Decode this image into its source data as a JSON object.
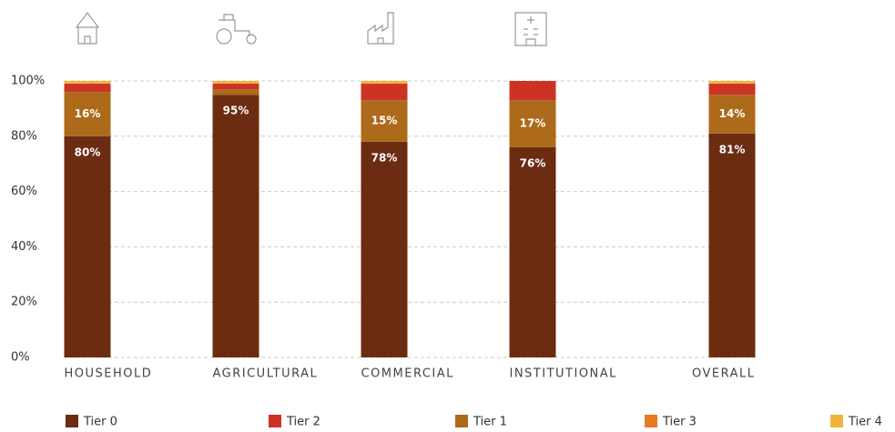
{
  "chart_data": {
    "type": "stacked_bar",
    "categories": [
      "HOUSEHOLD",
      "AGRICULTURAL",
      "COMMERCIAL",
      "INSTITUTIONAL",
      "OVERALL"
    ],
    "series": [
      {
        "name": "Tier 0",
        "color": "#6b2c12",
        "values": [
          80,
          95,
          78,
          76,
          81
        ],
        "value_labels": [
          "80%",
          "95%",
          "78%",
          "76%",
          "81%"
        ]
      },
      {
        "name": "Tier 2",
        "color": "#cc3325",
        "values": [
          3,
          2,
          6,
          7,
          4
        ]
      },
      {
        "name": "Tier 1",
        "color": "#ad6a1b",
        "values": [
          16,
          2,
          15,
          17,
          14
        ],
        "value_labels": [
          "16%",
          null,
          "15%",
          "17%",
          "14%"
        ]
      },
      {
        "name": "Tier 3",
        "color": "#e87a22",
        "values": [
          0,
          0,
          0,
          0,
          0
        ]
      },
      {
        "name": "Tier 4",
        "color": "#f0b43c",
        "values": [
          1,
          1,
          1,
          0,
          1
        ]
      }
    ],
    "stack_order": [
      0,
      2,
      1,
      3,
      4
    ],
    "ylim": [
      0,
      100
    ],
    "yticks": [
      {
        "value": 0,
        "label": "0%"
      },
      {
        "value": 20,
        "label": "20%"
      },
      {
        "value": 40,
        "label": "40%"
      },
      {
        "value": 60,
        "label": "60%"
      },
      {
        "value": 80,
        "label": "80%"
      },
      {
        "value": 100,
        "label": "100%"
      }
    ],
    "grid": true
  }
}
